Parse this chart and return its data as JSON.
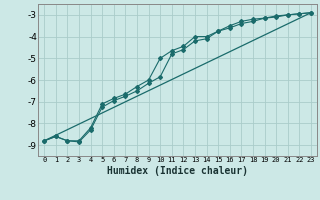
{
  "xlabel": "Humidex (Indice chaleur)",
  "bg_color": "#cce8e6",
  "grid_color": "#aaccca",
  "line_color": "#1a6b6b",
  "spine_color": "#888888",
  "xlim": [
    -0.5,
    23.5
  ],
  "ylim": [
    -9.5,
    -2.5
  ],
  "yticks": [
    -9,
    -8,
    -7,
    -6,
    -5,
    -4,
    -3
  ],
  "xticks": [
    0,
    1,
    2,
    3,
    4,
    5,
    6,
    7,
    8,
    9,
    10,
    11,
    12,
    13,
    14,
    15,
    16,
    17,
    18,
    19,
    20,
    21,
    22,
    23
  ],
  "line1_x": [
    0,
    1,
    2,
    3,
    4,
    5,
    6,
    7,
    8,
    9,
    10,
    11,
    12,
    13,
    14,
    15,
    16,
    17,
    18,
    19,
    20,
    21,
    22,
    23
  ],
  "line1_y": [
    -8.8,
    -8.6,
    -8.8,
    -8.8,
    -8.2,
    -7.1,
    -6.85,
    -6.65,
    -6.3,
    -6.0,
    -5.0,
    -4.65,
    -4.45,
    -4.0,
    -4.0,
    -3.75,
    -3.5,
    -3.3,
    -3.2,
    -3.15,
    -3.05,
    -3.0,
    -2.95,
    -2.9
  ],
  "line2_x": [
    0,
    1,
    2,
    3,
    4,
    5,
    6,
    7,
    8,
    9,
    10,
    11,
    12,
    13,
    14,
    15,
    16,
    17,
    18,
    19,
    20,
    21,
    22,
    23
  ],
  "line2_y": [
    -8.8,
    -8.6,
    -8.8,
    -8.85,
    -8.3,
    -7.25,
    -6.95,
    -6.75,
    -6.5,
    -6.15,
    -5.85,
    -4.8,
    -4.6,
    -4.2,
    -4.1,
    -3.75,
    -3.6,
    -3.4,
    -3.3,
    -3.15,
    -3.1,
    -3.0,
    -2.95,
    -2.9
  ],
  "line3_x": [
    0,
    23
  ],
  "line3_y": [
    -8.8,
    -2.9
  ]
}
